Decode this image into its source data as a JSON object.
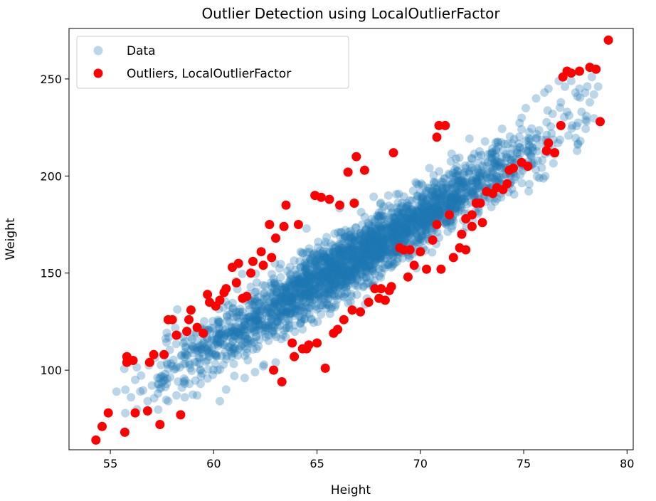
{
  "chart_data": {
    "type": "scatter",
    "title": "Outlier Detection using LocalOutlierFactor",
    "xlabel": "Height",
    "ylabel": "Weight",
    "xlim": [
      53,
      80.3
    ],
    "ylim": [
      59,
      276
    ],
    "xticks": [
      55,
      60,
      65,
      70,
      75,
      80
    ],
    "yticks": [
      100,
      150,
      200,
      250
    ],
    "grid": false,
    "legend_position": "upper-left",
    "series": [
      {
        "name": "Data",
        "color": "#1f77b4",
        "alpha": 0.3,
        "cloud": {
          "x_range": [
            55.5,
            78.5
          ],
          "slope": 6.4,
          "intercept": -270,
          "spread": 8,
          "count": 2600
        },
        "points": [
          [
            55.3,
            89
          ],
          [
            56.0,
            86
          ],
          [
            56.2,
            95
          ],
          [
            56.8,
            84
          ],
          [
            57.3,
            88
          ],
          [
            57.8,
            84
          ],
          [
            58.2,
            87
          ],
          [
            58.6,
            86
          ],
          [
            59.2,
            87
          ],
          [
            60.3,
            84
          ],
          [
            60.6,
            90
          ],
          [
            61.0,
            97
          ],
          [
            61.5,
            96
          ],
          [
            62.0,
            99
          ],
          [
            62.4,
            102
          ],
          [
            63.0,
            104
          ],
          [
            76.2,
            245
          ],
          [
            76.7,
            249
          ],
          [
            77.0,
            246
          ],
          [
            77.3,
            249
          ],
          [
            77.5,
            243
          ],
          [
            77.6,
            241
          ],
          [
            77.8,
            233
          ],
          [
            78.0,
            229
          ],
          [
            78.2,
            238
          ],
          [
            78.4,
            242
          ],
          [
            78.6,
            246
          ],
          [
            78.3,
            251
          ],
          [
            77.1,
            233
          ],
          [
            76.4,
            232
          ],
          [
            75.1,
            235
          ],
          [
            74.9,
            230
          ],
          [
            75.6,
            240
          ],
          [
            76.0,
            243
          ],
          [
            76.8,
            238
          ],
          [
            77.7,
            245
          ]
        ]
      },
      {
        "name": "Outliers, LocalOutlierFactor",
        "color": "#ff0000",
        "points": [
          [
            54.3,
            64
          ],
          [
            54.6,
            71
          ],
          [
            54.9,
            78
          ],
          [
            55.7,
            68
          ],
          [
            55.8,
            104
          ],
          [
            55.8,
            107
          ],
          [
            56.1,
            105
          ],
          [
            56.2,
            78
          ],
          [
            56.8,
            79
          ],
          [
            56.9,
            104
          ],
          [
            57.1,
            108
          ],
          [
            57.4,
            72
          ],
          [
            57.6,
            108
          ],
          [
            57.8,
            126
          ],
          [
            58.0,
            126
          ],
          [
            58.2,
            118
          ],
          [
            58.4,
            77
          ],
          [
            58.7,
            120
          ],
          [
            58.8,
            126
          ],
          [
            58.9,
            131
          ],
          [
            59.2,
            122
          ],
          [
            59.5,
            119
          ],
          [
            59.7,
            139
          ],
          [
            59.8,
            135
          ],
          [
            60.1,
            133
          ],
          [
            60.3,
            136
          ],
          [
            60.5,
            140
          ],
          [
            60.6,
            142
          ],
          [
            60.9,
            153
          ],
          [
            61.1,
            145
          ],
          [
            61.2,
            155
          ],
          [
            61.4,
            137
          ],
          [
            61.6,
            138
          ],
          [
            61.8,
            150
          ],
          [
            61.9,
            156
          ],
          [
            62.3,
            161
          ],
          [
            62.4,
            154
          ],
          [
            62.7,
            175
          ],
          [
            62.8,
            158
          ],
          [
            62.9,
            100
          ],
          [
            63.0,
            168
          ],
          [
            63.3,
            94
          ],
          [
            63.4,
            174
          ],
          [
            63.5,
            185
          ],
          [
            63.8,
            114
          ],
          [
            63.9,
            107
          ],
          [
            64.1,
            175
          ],
          [
            64.3,
            111
          ],
          [
            64.5,
            111
          ],
          [
            64.6,
            113
          ],
          [
            64.9,
            190
          ],
          [
            65.0,
            114
          ],
          [
            65.2,
            189
          ],
          [
            65.4,
            101
          ],
          [
            65.6,
            188
          ],
          [
            65.8,
            119
          ],
          [
            66.0,
            121
          ],
          [
            66.1,
            185
          ],
          [
            66.3,
            126
          ],
          [
            66.5,
            202
          ],
          [
            66.7,
            131
          ],
          [
            66.8,
            186
          ],
          [
            66.9,
            210
          ],
          [
            67.1,
            130
          ],
          [
            67.3,
            203
          ],
          [
            67.5,
            135
          ],
          [
            67.8,
            142
          ],
          [
            68.0,
            137
          ],
          [
            68.1,
            142
          ],
          [
            68.3,
            136
          ],
          [
            68.5,
            141
          ],
          [
            68.7,
            212
          ],
          [
            69.2,
            162
          ],
          [
            69.5,
            162
          ],
          [
            69.4,
            148
          ],
          [
            69.7,
            154
          ],
          [
            70.0,
            161
          ],
          [
            70.3,
            152
          ],
          [
            70.6,
            167
          ],
          [
            70.8,
            220
          ],
          [
            70.9,
            226
          ],
          [
            71.2,
            226
          ],
          [
            71.6,
            158
          ],
          [
            71.9,
            163
          ],
          [
            72.2,
            178
          ],
          [
            72.5,
            180
          ],
          [
            72.7,
            186
          ],
          [
            72.9,
            186
          ],
          [
            73.2,
            192
          ],
          [
            73.5,
            191
          ],
          [
            73.7,
            194
          ],
          [
            74.0,
            193
          ],
          [
            74.2,
            196
          ],
          [
            74.3,
            203
          ],
          [
            74.5,
            204
          ],
          [
            74.9,
            207
          ],
          [
            75.2,
            205
          ],
          [
            76.1,
            213
          ],
          [
            76.2,
            217
          ],
          [
            76.5,
            212
          ],
          [
            76.8,
            226
          ],
          [
            76.9,
            251
          ],
          [
            77.1,
            254
          ],
          [
            77.3,
            253
          ],
          [
            77.7,
            254
          ],
          [
            78.2,
            256
          ],
          [
            78.5,
            255
          ],
          [
            78.7,
            228
          ],
          [
            79.1,
            270
          ],
          [
            72.0,
            170
          ],
          [
            73.0,
            176
          ],
          [
            72.5,
            174
          ],
          [
            72.2,
            162
          ],
          [
            71.4,
            180
          ],
          [
            70.8,
            175
          ],
          [
            71.0,
            152
          ],
          [
            68.6,
            143
          ],
          [
            69.0,
            163
          ]
        ]
      }
    ]
  }
}
